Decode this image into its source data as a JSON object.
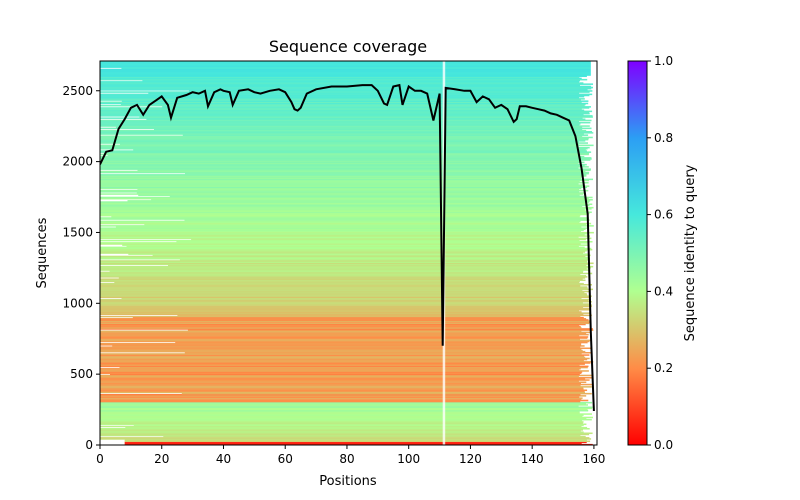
{
  "chart_data": {
    "type": "heatmap",
    "title": "Sequence coverage",
    "xlabel": "Positions",
    "ylabel": "Sequences",
    "xlim": [
      0,
      161
    ],
    "ylim": [
      0,
      2710
    ],
    "x_ticks": [
      0,
      20,
      40,
      60,
      80,
      100,
      120,
      140,
      160
    ],
    "y_ticks": [
      0,
      500,
      1000,
      1500,
      2000,
      2500
    ],
    "colorbar": {
      "label": "Sequence identity to query",
      "range": [
        0.0,
        1.0
      ],
      "ticks": [
        "0.0",
        "0.2",
        "0.4",
        "0.6",
        "0.8",
        "1.0"
      ],
      "colormap": "rainbow_r"
    },
    "coverage_line": {
      "color": "#000000",
      "x": [
        0,
        2,
        4,
        6,
        8,
        10,
        12,
        14,
        16,
        18,
        20,
        22,
        23,
        25,
        28,
        30,
        32,
        34,
        35,
        37,
        39,
        40,
        42,
        43,
        45,
        48,
        50,
        52,
        55,
        58,
        60,
        62,
        63,
        64,
        65,
        67,
        70,
        75,
        80,
        85,
        88,
        90,
        92,
        93,
        95,
        97,
        98,
        100,
        102,
        104,
        106,
        108,
        110,
        111,
        112,
        115,
        118,
        120,
        122,
        124,
        126,
        128,
        130,
        132,
        134,
        135,
        136,
        138,
        140,
        142,
        144,
        146,
        148,
        150,
        152,
        154,
        156,
        158,
        159,
        160
      ],
      "y": [
        1980,
        2070,
        2080,
        2230,
        2300,
        2380,
        2400,
        2330,
        2400,
        2430,
        2460,
        2400,
        2310,
        2450,
        2470,
        2490,
        2480,
        2500,
        2390,
        2490,
        2510,
        2500,
        2490,
        2400,
        2500,
        2510,
        2490,
        2480,
        2500,
        2510,
        2490,
        2420,
        2370,
        2360,
        2380,
        2480,
        2510,
        2530,
        2530,
        2540,
        2540,
        2500,
        2410,
        2400,
        2530,
        2540,
        2400,
        2530,
        2500,
        2500,
        2480,
        2290,
        2480,
        700,
        2520,
        2510,
        2500,
        2500,
        2420,
        2460,
        2440,
        2380,
        2400,
        2370,
        2280,
        2300,
        2390,
        2390,
        2380,
        2370,
        2360,
        2340,
        2330,
        2310,
        2290,
        2180,
        1950,
        1630,
        800,
        240
      ]
    }
  }
}
